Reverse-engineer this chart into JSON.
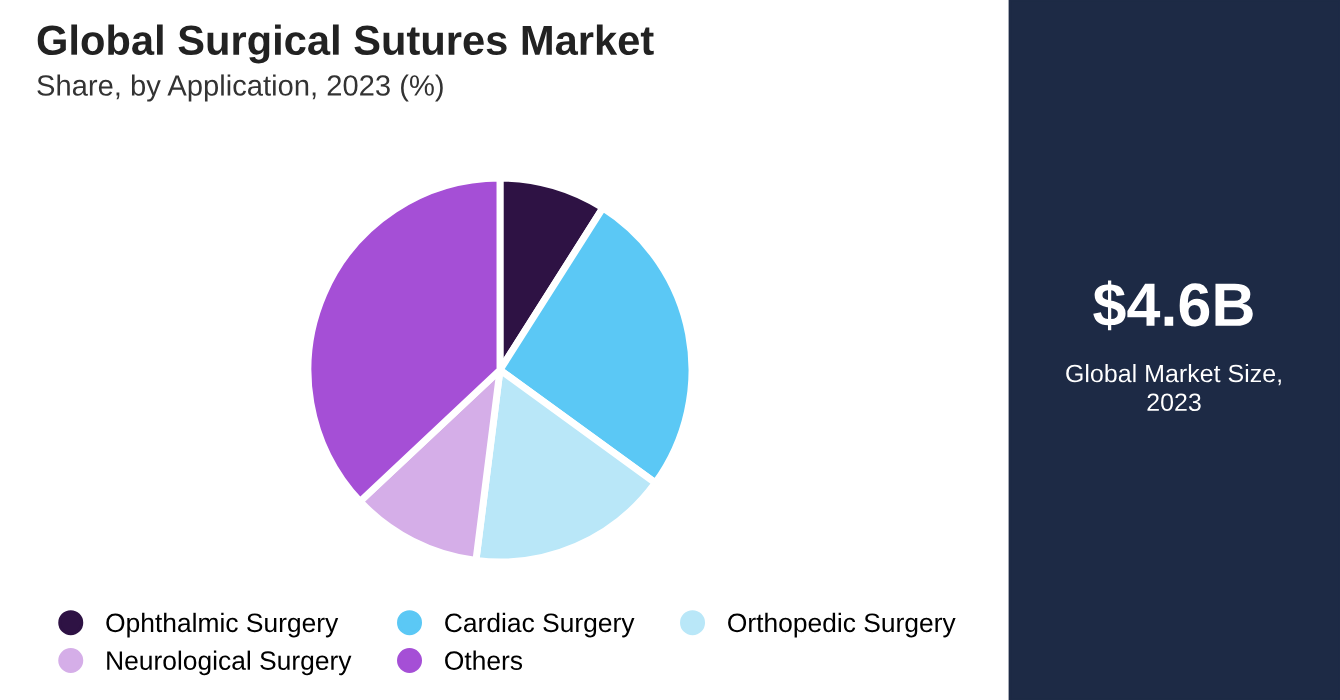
{
  "chart_data": {
    "type": "pie",
    "title": "Global Surgical Sutures Market",
    "subtitle": "Share, by Application, 2023 (%)",
    "categories": [
      "Ophthalmic Surgery",
      "Cardiac Surgery",
      "Orthopedic Surgery",
      "Neurological Surgery",
      "Others"
    ],
    "values": [
      9,
      26,
      17,
      11,
      37
    ],
    "colors": [
      "#2e1244",
      "#5bc8f5",
      "#b9e7f8",
      "#d5aee8",
      "#a54fd6"
    ],
    "legend": "bottom",
    "annotations": [
      "$4.6B",
      "Global Market Size,\n2023"
    ]
  }
}
